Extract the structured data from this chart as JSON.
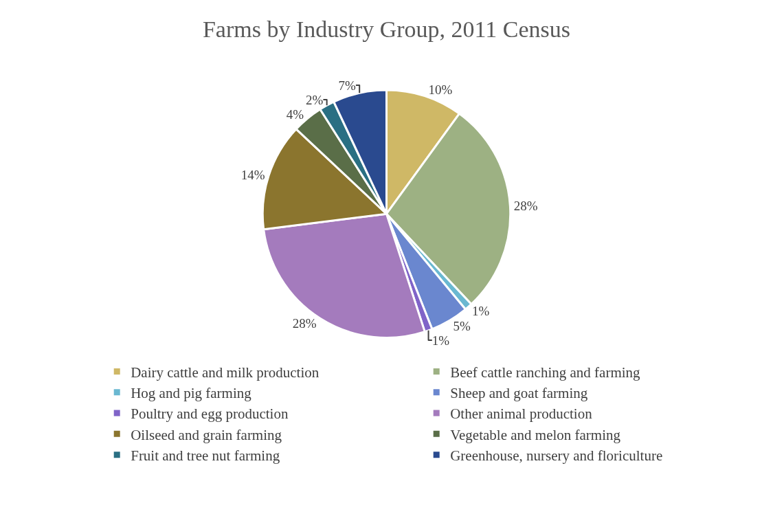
{
  "chart_data": {
    "type": "pie",
    "title": "Farms by Industry Group, 2011 Census",
    "categories": [
      "Dairy cattle and milk production",
      "Beef cattle ranching and farming",
      "Hog and pig farming",
      "Sheep and goat farming",
      "Poultry and egg production",
      "Other animal production",
      "Oilseed and grain farming",
      "Vegetable and melon farming",
      "Fruit and tree nut farming",
      "Greenhouse, nursery and floriculture"
    ],
    "values": [
      10,
      28,
      1,
      5,
      1,
      28,
      14,
      4,
      2,
      7
    ],
    "value_labels": [
      "10%",
      "28%",
      "1%",
      "5%",
      "1%",
      "28%",
      "14%",
      "4%",
      "2%",
      "7%"
    ],
    "colors": [
      "#cfb866",
      "#9db183",
      "#6ab8d1",
      "#6a87cf",
      "#8064c8",
      "#a47bbd",
      "#8b752e",
      "#5a6e48",
      "#2a6f83",
      "#2a4a8f"
    ],
    "legend": "bottom"
  }
}
